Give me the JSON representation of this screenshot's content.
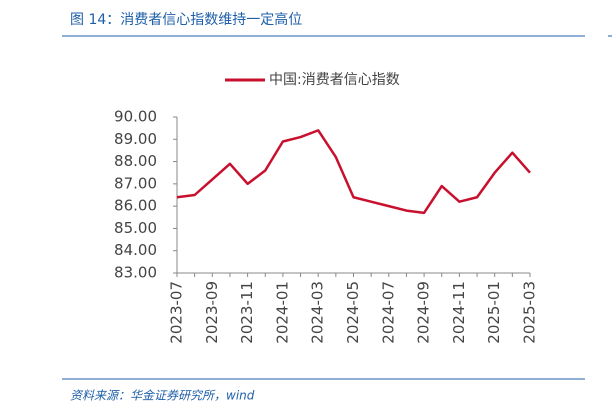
{
  "header": {
    "title": "图 14：消费者信心指数维持一定高位"
  },
  "chart_data": {
    "type": "line",
    "categories": [
      "2023-07",
      null,
      "2023-09",
      null,
      "2023-11",
      null,
      "2024-01",
      null,
      "2024-03",
      null,
      "2024-05",
      null,
      "2024-07",
      null,
      "2024-09",
      null,
      "2024-11",
      null,
      "2025-01",
      null,
      "2025-03"
    ],
    "series": [
      {
        "name": "中国:消费者信心指数",
        "color": "#c8102e",
        "values": [
          86.4,
          86.5,
          87.2,
          87.9,
          87.0,
          87.6,
          88.9,
          89.1,
          89.4,
          88.2,
          86.4,
          86.2,
          86.0,
          85.8,
          85.7,
          86.9,
          86.2,
          86.4,
          87.5,
          88.4,
          87.5
        ]
      }
    ],
    "ylim": [
      83,
      90
    ],
    "yticks": [
      {
        "value": 83,
        "label": "83.00"
      },
      {
        "value": 84,
        "label": "84.00"
      },
      {
        "value": 85,
        "label": "85.00"
      },
      {
        "value": 86,
        "label": "86.00"
      },
      {
        "value": 87,
        "label": "87.00"
      },
      {
        "value": 88,
        "label": "88.00"
      },
      {
        "value": 89,
        "label": "89.00"
      },
      {
        "value": 90,
        "label": "90.00"
      }
    ],
    "legend": "top"
  },
  "footer": {
    "source": "资料来源：华金证券研究所，wind"
  }
}
